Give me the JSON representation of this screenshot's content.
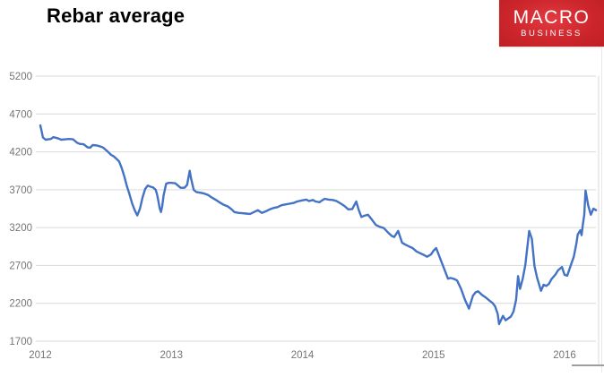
{
  "header": {
    "title": "Rebar average",
    "logo": {
      "line1": "MACRO",
      "line2": "BUSINESS",
      "bg_color": "#cd262c",
      "text_color": "#ffffff"
    }
  },
  "chart_data": {
    "type": "line",
    "title": "Rebar average",
    "xlabel": "",
    "ylabel": "",
    "xlim": [
      2012,
      2016.25
    ],
    "ylim": [
      1700,
      5200
    ],
    "yticks": [
      5200,
      4700,
      4200,
      3700,
      3200,
      2700,
      2200,
      1700
    ],
    "xticks": [
      2012,
      2013,
      2014,
      2015,
      2016
    ],
    "grid": true,
    "legend_position": "none",
    "colors": {
      "line": "#4472c4",
      "gridline": "#d9d9d9",
      "axis_line": "#d9d9d9",
      "plot_right_border": "#d9d9d9",
      "tick_label": "#757575"
    },
    "series": [
      {
        "name": "Rebar average",
        "color": "#4472c4",
        "points": [
          [
            2012.0,
            4550
          ],
          [
            2012.01,
            4470
          ],
          [
            2012.02,
            4390
          ],
          [
            2012.04,
            4360
          ],
          [
            2012.06,
            4365
          ],
          [
            2012.08,
            4370
          ],
          [
            2012.1,
            4395
          ],
          [
            2012.13,
            4380
          ],
          [
            2012.16,
            4360
          ],
          [
            2012.19,
            4365
          ],
          [
            2012.22,
            4370
          ],
          [
            2012.25,
            4365
          ],
          [
            2012.28,
            4320
          ],
          [
            2012.3,
            4305
          ],
          [
            2012.33,
            4300
          ],
          [
            2012.36,
            4260
          ],
          [
            2012.38,
            4255
          ],
          [
            2012.4,
            4290
          ],
          [
            2012.43,
            4285
          ],
          [
            2012.46,
            4270
          ],
          [
            2012.48,
            4255
          ],
          [
            2012.51,
            4210
          ],
          [
            2012.54,
            4160
          ],
          [
            2012.56,
            4140
          ],
          [
            2012.58,
            4110
          ],
          [
            2012.6,
            4075
          ],
          [
            2012.62,
            3990
          ],
          [
            2012.64,
            3880
          ],
          [
            2012.66,
            3750
          ],
          [
            2012.68,
            3640
          ],
          [
            2012.7,
            3520
          ],
          [
            2012.72,
            3430
          ],
          [
            2012.74,
            3360
          ],
          [
            2012.76,
            3450
          ],
          [
            2012.78,
            3600
          ],
          [
            2012.8,
            3710
          ],
          [
            2012.82,
            3755
          ],
          [
            2012.84,
            3740
          ],
          [
            2012.86,
            3730
          ],
          [
            2012.88,
            3700
          ],
          [
            2012.89,
            3640
          ],
          [
            2012.9,
            3560
          ],
          [
            2012.91,
            3460
          ],
          [
            2012.92,
            3405
          ],
          [
            2012.93,
            3480
          ],
          [
            2012.94,
            3620
          ],
          [
            2012.96,
            3780
          ],
          [
            2012.98,
            3790
          ],
          [
            2013.0,
            3790
          ],
          [
            2013.03,
            3785
          ],
          [
            2013.05,
            3755
          ],
          [
            2013.07,
            3725
          ],
          [
            2013.1,
            3725
          ],
          [
            2013.12,
            3765
          ],
          [
            2013.14,
            3950
          ],
          [
            2013.15,
            3850
          ],
          [
            2013.17,
            3700
          ],
          [
            2013.19,
            3670
          ],
          [
            2013.22,
            3660
          ],
          [
            2013.25,
            3650
          ],
          [
            2013.28,
            3630
          ],
          [
            2013.31,
            3595
          ],
          [
            2013.34,
            3565
          ],
          [
            2013.37,
            3530
          ],
          [
            2013.4,
            3500
          ],
          [
            2013.43,
            3480
          ],
          [
            2013.46,
            3440
          ],
          [
            2013.48,
            3405
          ],
          [
            2013.51,
            3395
          ],
          [
            2013.54,
            3390
          ],
          [
            2013.57,
            3385
          ],
          [
            2013.6,
            3380
          ],
          [
            2013.63,
            3405
          ],
          [
            2013.66,
            3430
          ],
          [
            2013.69,
            3395
          ],
          [
            2013.72,
            3415
          ],
          [
            2013.75,
            3440
          ],
          [
            2013.78,
            3460
          ],
          [
            2013.81,
            3470
          ],
          [
            2013.84,
            3495
          ],
          [
            2013.87,
            3505
          ],
          [
            2013.9,
            3515
          ],
          [
            2013.93,
            3525
          ],
          [
            2013.96,
            3545
          ],
          [
            2014.0,
            3560
          ],
          [
            2014.03,
            3570
          ],
          [
            2014.05,
            3550
          ],
          [
            2014.08,
            3565
          ],
          [
            2014.1,
            3545
          ],
          [
            2014.13,
            3535
          ],
          [
            2014.15,
            3560
          ],
          [
            2014.17,
            3580
          ],
          [
            2014.2,
            3570
          ],
          [
            2014.23,
            3565
          ],
          [
            2014.26,
            3550
          ],
          [
            2014.29,
            3520
          ],
          [
            2014.32,
            3485
          ],
          [
            2014.35,
            3440
          ],
          [
            2014.38,
            3445
          ],
          [
            2014.41,
            3545
          ],
          [
            2014.43,
            3430
          ],
          [
            2014.45,
            3340
          ],
          [
            2014.47,
            3355
          ],
          [
            2014.5,
            3370
          ],
          [
            2014.53,
            3305
          ],
          [
            2014.56,
            3235
          ],
          [
            2014.59,
            3210
          ],
          [
            2014.62,
            3195
          ],
          [
            2014.65,
            3140
          ],
          [
            2014.68,
            3090
          ],
          [
            2014.7,
            3075
          ],
          [
            2014.73,
            3155
          ],
          [
            2014.76,
            3000
          ],
          [
            2014.79,
            2970
          ],
          [
            2014.82,
            2945
          ],
          [
            2014.84,
            2930
          ],
          [
            2014.87,
            2885
          ],
          [
            2014.9,
            2860
          ],
          [
            2014.93,
            2835
          ],
          [
            2014.95,
            2815
          ],
          [
            2014.98,
            2845
          ],
          [
            2015.0,
            2895
          ],
          [
            2015.02,
            2930
          ],
          [
            2015.05,
            2795
          ],
          [
            2015.08,
            2660
          ],
          [
            2015.11,
            2525
          ],
          [
            2015.13,
            2535
          ],
          [
            2015.16,
            2520
          ],
          [
            2015.18,
            2500
          ],
          [
            2015.21,
            2390
          ],
          [
            2015.24,
            2245
          ],
          [
            2015.27,
            2130
          ],
          [
            2015.3,
            2300
          ],
          [
            2015.32,
            2345
          ],
          [
            2015.34,
            2360
          ],
          [
            2015.37,
            2310
          ],
          [
            2015.4,
            2275
          ],
          [
            2015.42,
            2245
          ],
          [
            2015.45,
            2205
          ],
          [
            2015.47,
            2160
          ],
          [
            2015.49,
            2060
          ],
          [
            2015.5,
            1925
          ],
          [
            2015.53,
            2035
          ],
          [
            2015.55,
            1975
          ],
          [
            2015.57,
            2000
          ],
          [
            2015.59,
            2025
          ],
          [
            2015.61,
            2090
          ],
          [
            2015.63,
            2245
          ],
          [
            2015.645,
            2560
          ],
          [
            2015.66,
            2390
          ],
          [
            2015.68,
            2520
          ],
          [
            2015.7,
            2705
          ],
          [
            2015.72,
            3010
          ],
          [
            2015.73,
            3155
          ],
          [
            2015.75,
            3050
          ],
          [
            2015.77,
            2695
          ],
          [
            2015.79,
            2540
          ],
          [
            2015.82,
            2365
          ],
          [
            2015.84,
            2445
          ],
          [
            2015.86,
            2430
          ],
          [
            2015.88,
            2455
          ],
          [
            2015.9,
            2520
          ],
          [
            2015.93,
            2580
          ],
          [
            2015.95,
            2635
          ],
          [
            2015.98,
            2680
          ],
          [
            2016.0,
            2575
          ],
          [
            2016.02,
            2565
          ],
          [
            2016.05,
            2715
          ],
          [
            2016.07,
            2815
          ],
          [
            2016.09,
            2990
          ],
          [
            2016.1,
            3110
          ],
          [
            2016.12,
            3165
          ],
          [
            2016.13,
            3100
          ],
          [
            2016.14,
            3250
          ],
          [
            2016.15,
            3370
          ],
          [
            2016.16,
            3690
          ],
          [
            2016.18,
            3490
          ],
          [
            2016.2,
            3370
          ],
          [
            2016.22,
            3450
          ],
          [
            2016.24,
            3430
          ]
        ]
      }
    ]
  }
}
